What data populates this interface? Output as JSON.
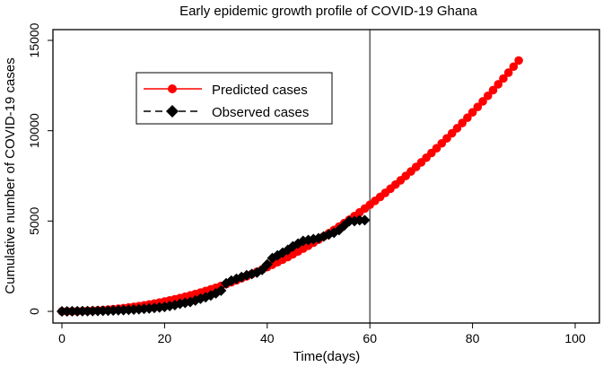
{
  "chart_data": {
    "type": "scatter",
    "title": "Early epidemic growth profile of COVID-19 Ghana",
    "xlabel": "Time(days)",
    "ylabel": "Cumulative number of COVID-19 cases",
    "xlim": [
      0,
      100
    ],
    "ylim": [
      0,
      15000
    ],
    "x_ticks": [
      0,
      20,
      40,
      60,
      80,
      100
    ],
    "y_ticks": [
      0,
      5000,
      10000,
      15000
    ],
    "x_tick_labels": [
      "0",
      "20",
      "40",
      "60",
      "80",
      "100"
    ],
    "y_tick_labels": [
      "0",
      "5000",
      "10000",
      "15000"
    ],
    "vertical_line_x": 60,
    "legend_position": "top-left",
    "series": [
      {
        "name": "Predicted cases",
        "color": "#ff0000",
        "marker": "circle",
        "line": "solid",
        "x_start": 0,
        "values": [
          0,
          1,
          4,
          9,
          17,
          27,
          40,
          56,
          74,
          96,
          121,
          148,
          179,
          213,
          251,
          291,
          335,
          382,
          433,
          487,
          544,
          605,
          669,
          736,
          808,
          883,
          961,
          1043,
          1128,
          1218,
          1310,
          1407,
          1508,
          1611,
          1720,
          1832,
          1947,
          2066,
          2188,
          2315,
          2446,
          2581,
          2719,
          2863,
          3008,
          3160,
          3314,
          3472,
          3635,
          3800,
          3971,
          4144,
          4323,
          4505,
          4693,
          4883,
          5078,
          5277,
          5480,
          5688,
          5900,
          6117,
          6334,
          6560,
          6787,
          7021,
          7257,
          7497,
          7744,
          7993,
          8247,
          8505,
          8767,
          9030,
          9301,
          9578,
          9858,
          10138,
          10428,
          10718,
          11017,
          11316,
          11624,
          11932,
          12244,
          12567,
          12889,
          13215,
          13546,
          13887
        ]
      },
      {
        "name": "Observed cases",
        "color": "#000000",
        "marker": "diamond",
        "line": "dashed",
        "x_start": 0,
        "values": [
          0,
          3,
          5,
          8,
          10,
          15,
          20,
          25,
          30,
          40,
          50,
          60,
          70,
          85,
          100,
          115,
          140,
          160,
          190,
          220,
          250,
          300,
          350,
          420,
          470,
          520,
          600,
          700,
          780,
          880,
          1000,
          1150,
          1550,
          1700,
          1800,
          1900,
          2000,
          2070,
          2150,
          2300,
          2600,
          2950,
          3100,
          3250,
          3400,
          3600,
          3750,
          3900,
          3950,
          4000,
          4050,
          4150,
          4250,
          4350,
          4500,
          4750,
          5000,
          5000,
          5050,
          5050
        ]
      }
    ]
  }
}
